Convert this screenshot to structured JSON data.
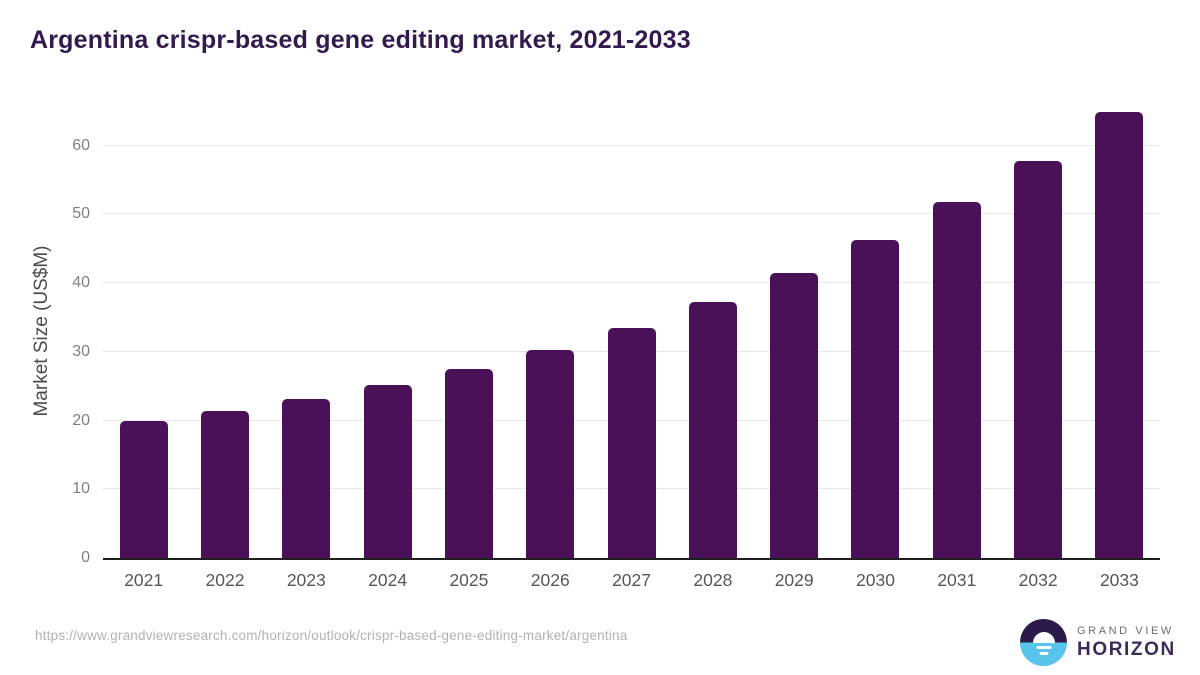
{
  "page": {
    "title": "Argentina crispr-based gene editing market, 2021-2033"
  },
  "chart_data": {
    "type": "bar",
    "title": "Argentina crispr-based gene editing market, 2021-2033",
    "categories": [
      "2021",
      "2022",
      "2023",
      "2024",
      "2025",
      "2026",
      "2027",
      "2028",
      "2029",
      "2030",
      "2031",
      "2032",
      "2033"
    ],
    "values": [
      20.0,
      21.4,
      23.2,
      25.1,
      27.5,
      30.3,
      33.5,
      37.2,
      41.5,
      46.2,
      51.8,
      57.8,
      64.9
    ],
    "xlabel": "",
    "ylabel": "Market Size (US$M)",
    "yticks": [
      0,
      10,
      20,
      30,
      40,
      50,
      60
    ],
    "ylim": [
      0,
      65.9
    ],
    "grid": "horizontal",
    "legend": "none",
    "bar_color": "#4a1158",
    "unit": "US$M"
  },
  "footer": {
    "source_url": "https://www.grandviewresearch.com/horizon/outlook/crispr-based-gene-editing-market/argentina",
    "logo": {
      "line1": "GRAND VIEW",
      "line2": "HORIZON"
    }
  },
  "colors": {
    "title": "#321a4e",
    "bar": "#4a1158",
    "gridline": "#e9e7e8",
    "axis_line": "#1f1f1f",
    "x_label": "#55565a",
    "y_tick_label": "#7f8083",
    "y_axis_title": "#4a4b4d",
    "footer_url": "#b2b2b2",
    "logo_dark": "#2b1a4a",
    "logo_blue": "#58c4eb"
  }
}
